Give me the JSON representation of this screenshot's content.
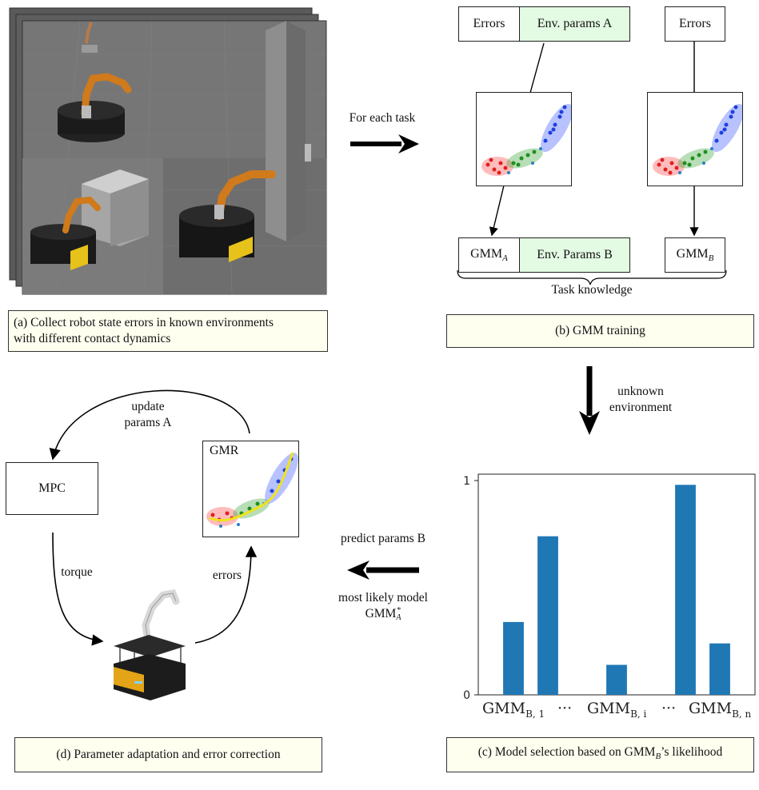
{
  "panel_a": {
    "caption_line1": "(a) Collect robot state errors in known environments",
    "caption_line2": "with different contact dynamics"
  },
  "arrow_for_each_task": "For each task",
  "panel_b": {
    "errors_a": "Errors",
    "env_params_a": "Env. params A",
    "errors_b": "Errors",
    "gmm_a_base": "GMM",
    "gmm_a_sub": "A",
    "env_params_b": "Env. Params B",
    "gmm_b_base": "GMM",
    "gmm_b_sub": "B",
    "task_knowledge": "Task knowledge",
    "caption": "(b) GMM training"
  },
  "arrow_unknown": {
    "line1": "unknown",
    "line2": "environment"
  },
  "panel_c": {
    "caption_prefix": "(c) Model selection based on GMM",
    "caption_sub": "B",
    "caption_suffix": "’s likelihood"
  },
  "arrow_predict": {
    "top": "predict params B",
    "bottom1": "most likely model",
    "bottom2_base": "GMM",
    "bottom2_sup": "*",
    "bottom2_sub": "A"
  },
  "panel_d": {
    "update_line1": "update",
    "update_line2": "params A",
    "mpc": "MPC",
    "gmr": "GMR",
    "torque": "torque",
    "errors": "errors",
    "caption": "(d) Parameter adaptation and error correction"
  },
  "colors": {
    "bar": "#1f77b4",
    "caption_bg": "#fffff0",
    "env_green": "#e3fae3"
  },
  "chart_data": {
    "type": "bar",
    "categories": [
      "GMM_B,1",
      "",
      "",
      "GMM_B,i",
      "",
      "",
      "GMM_B,n"
    ],
    "x_tick_labels": [
      {
        "base": "GMM",
        "sub": "B, 1"
      },
      {
        "base": "···",
        "sub": ""
      },
      {
        "base": "GMM",
        "sub": "B, i"
      },
      {
        "base": "···",
        "sub": ""
      },
      {
        "base": "GMM",
        "sub": "B, n"
      }
    ],
    "values": [
      0.34,
      0.74,
      0.0,
      0.14,
      0.0,
      0.98,
      0.24
    ],
    "y_ticks": [
      "0",
      "1"
    ],
    "ylim": [
      0,
      1
    ],
    "color": "#1f77b4",
    "grid": false
  }
}
